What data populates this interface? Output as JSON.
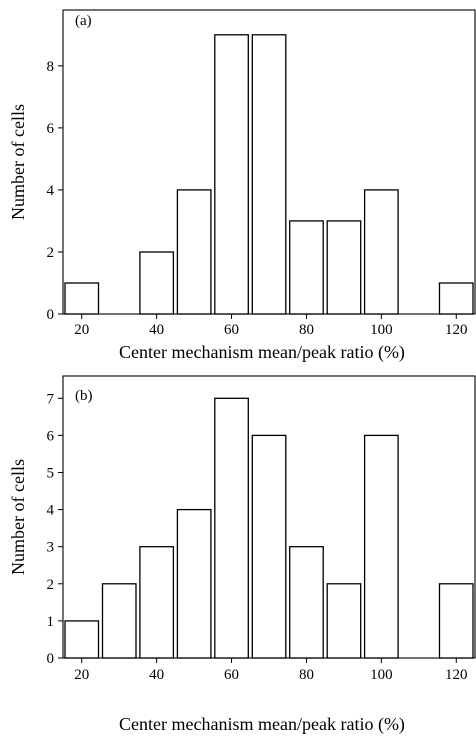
{
  "chart_data": [
    {
      "type": "bar",
      "panel_label": "(a)",
      "xlabel": "Center mechanism mean/peak ratio (%)",
      "ylabel": "Number of cells",
      "x_ticks": [
        20,
        40,
        60,
        80,
        100,
        120
      ],
      "y_ticks": [
        0,
        2,
        4,
        6,
        8
      ],
      "xlim": [
        15,
        125
      ],
      "ylim": [
        0,
        9.8
      ],
      "bin_width": 10,
      "x": [
        20,
        40,
        50,
        60,
        70,
        80,
        90,
        100,
        120
      ],
      "values": [
        1,
        2,
        4,
        9,
        9,
        3,
        3,
        4,
        1
      ]
    },
    {
      "type": "bar",
      "panel_label": "(b)",
      "xlabel": "Center mechanism mean/peak ratio (%)",
      "ylabel": "Number of cells",
      "x_ticks": [
        20,
        40,
        60,
        80,
        100,
        120
      ],
      "y_ticks": [
        0,
        1,
        2,
        3,
        4,
        5,
        6,
        7
      ],
      "xlim": [
        15,
        125
      ],
      "ylim": [
        0,
        7.6
      ],
      "bin_width": 10,
      "x": [
        20,
        30,
        40,
        50,
        60,
        70,
        80,
        90,
        100,
        120
      ],
      "values": [
        1,
        2,
        3,
        4,
        7,
        6,
        3,
        2,
        6,
        2
      ]
    }
  ]
}
